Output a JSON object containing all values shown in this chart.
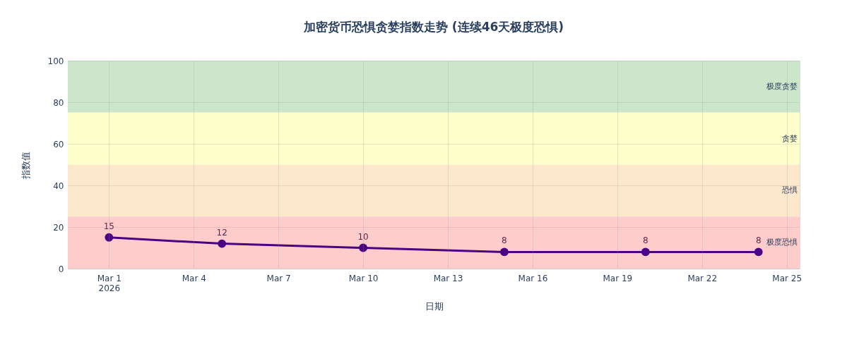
{
  "chart_data": {
    "type": "line",
    "title": "加密货币恐惧贪婪指数走势 (连续46天极度恐惧)",
    "xlabel": "日期",
    "ylabel": "指数值",
    "x": [
      "2026-03-01",
      "2026-03-05",
      "2026-03-10",
      "2026-03-15",
      "2026-03-20",
      "2026-03-24"
    ],
    "series": [
      {
        "color": "#4b0082",
        "values": [
          15,
          12,
          10,
          8,
          8,
          8
        ]
      }
    ],
    "xlim": [
      "2026-02-27T13:00",
      "2026-03-25T11:00"
    ],
    "xticks": [
      {
        "value": "2026-03-01",
        "label": "Mar 1\n2026"
      },
      {
        "value": "2026-03-04",
        "label": "Mar 4"
      },
      {
        "value": "2026-03-07",
        "label": "Mar 7"
      },
      {
        "value": "2026-03-10",
        "label": "Mar 10"
      },
      {
        "value": "2026-03-13",
        "label": "Mar 13"
      },
      {
        "value": "2026-03-16",
        "label": "Mar 16"
      },
      {
        "value": "2026-03-19",
        "label": "Mar 19"
      },
      {
        "value": "2026-03-22",
        "label": "Mar 22"
      },
      {
        "value": "2026-03-25",
        "label": "Mar 25"
      }
    ],
    "ylim": [
      0,
      100
    ],
    "yticks": [
      0,
      20,
      40,
      60,
      80,
      100
    ],
    "bands": [
      {
        "axis": "y",
        "from": 75,
        "to": 100,
        "label": "极度贪婪",
        "color": "#cce6cc"
      },
      {
        "axis": "y",
        "from": 50,
        "to": 75,
        "label": "贪婪",
        "color": "#ffffcc"
      },
      {
        "axis": "y",
        "from": 25,
        "to": 50,
        "label": "恐惧",
        "color": "#fde8cc"
      },
      {
        "axis": "y",
        "from": 0,
        "to": 25,
        "label": "极度恐惧",
        "color": "#ffcccc"
      }
    ],
    "data_labels": true,
    "marker": "circle",
    "line_style": "solid",
    "grid": true
  }
}
